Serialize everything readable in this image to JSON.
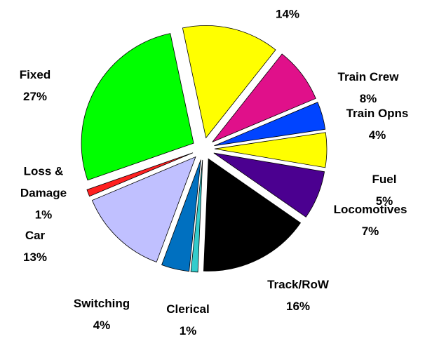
{
  "chart_data": {
    "type": "pie",
    "categories": [
      null,
      "Train Crew",
      "Train Opns",
      "Fuel",
      "Locomotives",
      "Track/RoW",
      "Clerical",
      "Switching",
      "Car",
      "Loss & Damage",
      "Fixed"
    ],
    "values": [
      14,
      8,
      4,
      5,
      7,
      16,
      1,
      4,
      13,
      1,
      27
    ],
    "value_labels": [
      "14%",
      "8%",
      "4%",
      "5%",
      "7%",
      "16%",
      "1%",
      "4%",
      "13%",
      "1%",
      "27%"
    ],
    "colors": [
      "#ffff00",
      "#e0108a",
      "#0044ff",
      "#ffff00",
      "#4b0090",
      "#000000",
      "#33cccc",
      "#0070c0",
      "#c0c0ff",
      "#ff2020",
      "#00ff00"
    ]
  }
}
